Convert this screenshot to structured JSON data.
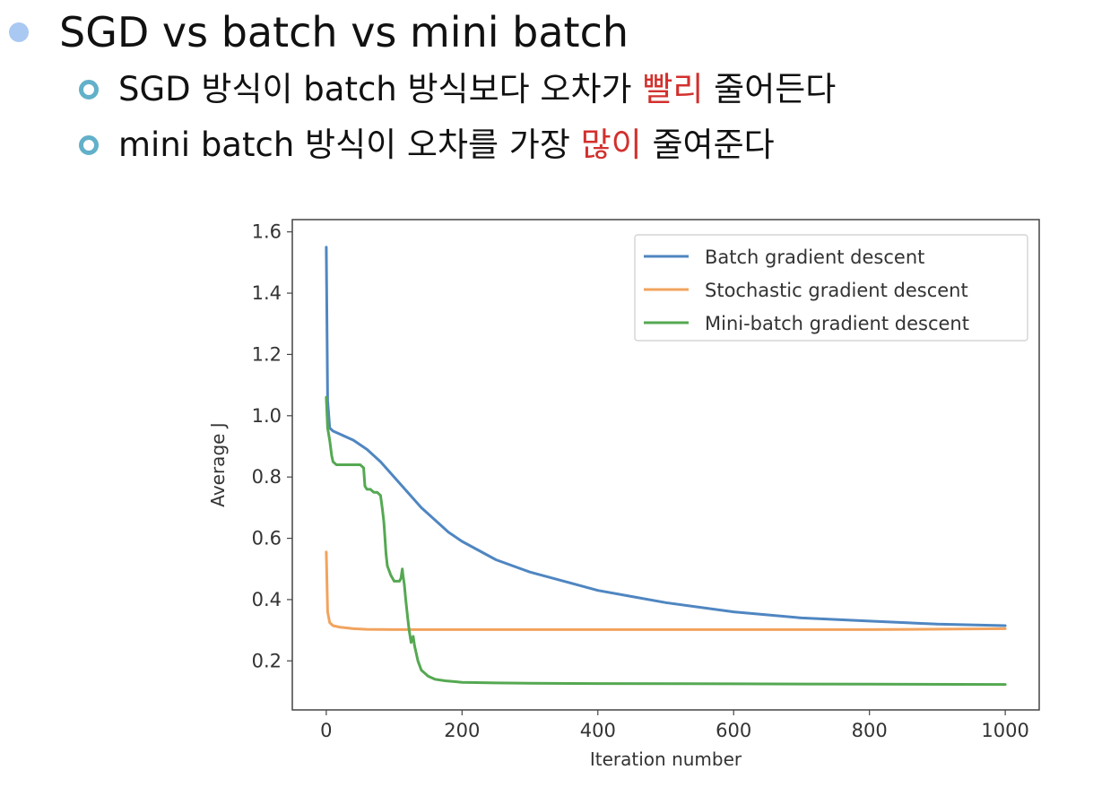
{
  "slide": {
    "heading": "SGD vs batch vs mini batch",
    "bullets": [
      {
        "before": "SGD 방식이 batch 방식보다 오차가 ",
        "highlight": "빨리",
        "after": " 줄어든다"
      },
      {
        "before": "mini batch 방식이 오차를 가장 ",
        "highlight": "많이",
        "after": " 줄여준다"
      }
    ]
  },
  "colors": {
    "bullet_main": "#a9c8f2",
    "bullet_sub": "#62b0c9",
    "highlight": "#d2302d"
  },
  "chart_data": {
    "type": "line",
    "xlabel": "Iteration number",
    "ylabel": "Average J",
    "xlim": [
      -50,
      1050
    ],
    "ylim": [
      0.04,
      1.64
    ],
    "xticks": [
      0,
      200,
      400,
      600,
      800,
      1000
    ],
    "yticks": [
      0.2,
      0.4,
      0.6,
      0.8,
      1.0,
      1.2,
      1.4,
      1.6
    ],
    "grid": false,
    "legend_position": "top-right",
    "series": [
      {
        "name": "Batch gradient descent",
        "color": "#4f86c1",
        "x": [
          0,
          2,
          5,
          10,
          20,
          40,
          60,
          80,
          100,
          120,
          140,
          160,
          180,
          200,
          250,
          300,
          350,
          400,
          450,
          500,
          600,
          700,
          800,
          900,
          1000
        ],
        "y": [
          1.55,
          1.05,
          0.96,
          0.95,
          0.94,
          0.92,
          0.89,
          0.85,
          0.8,
          0.75,
          0.7,
          0.66,
          0.62,
          0.59,
          0.53,
          0.49,
          0.46,
          0.43,
          0.41,
          0.39,
          0.36,
          0.34,
          0.33,
          0.32,
          0.315
        ]
      },
      {
        "name": "Stochastic gradient descent",
        "color": "#f2a35e",
        "x": [
          0,
          2,
          5,
          10,
          20,
          40,
          60,
          100,
          200,
          400,
          600,
          800,
          1000
        ],
        "y": [
          0.555,
          0.36,
          0.325,
          0.315,
          0.31,
          0.305,
          0.303,
          0.302,
          0.302,
          0.302,
          0.302,
          0.302,
          0.305
        ]
      },
      {
        "name": "Mini-batch gradient descent",
        "color": "#55a852",
        "x": [
          0,
          2,
          5,
          8,
          10,
          15,
          20,
          30,
          40,
          50,
          55,
          57,
          60,
          65,
          70,
          75,
          80,
          83,
          85,
          88,
          90,
          95,
          100,
          105,
          108,
          110,
          112,
          113,
          115,
          117,
          120,
          122,
          125,
          128,
          130,
          135,
          140,
          150,
          160,
          175,
          200,
          250,
          300,
          400,
          600,
          800,
          1000
        ],
        "y": [
          1.06,
          0.96,
          0.92,
          0.87,
          0.85,
          0.84,
          0.84,
          0.84,
          0.84,
          0.84,
          0.83,
          0.77,
          0.76,
          0.76,
          0.75,
          0.75,
          0.74,
          0.69,
          0.65,
          0.55,
          0.51,
          0.48,
          0.46,
          0.46,
          0.46,
          0.47,
          0.5,
          0.48,
          0.45,
          0.4,
          0.34,
          0.3,
          0.26,
          0.28,
          0.25,
          0.2,
          0.17,
          0.15,
          0.14,
          0.135,
          0.13,
          0.128,
          0.127,
          0.126,
          0.125,
          0.124,
          0.123
        ]
      }
    ]
  }
}
